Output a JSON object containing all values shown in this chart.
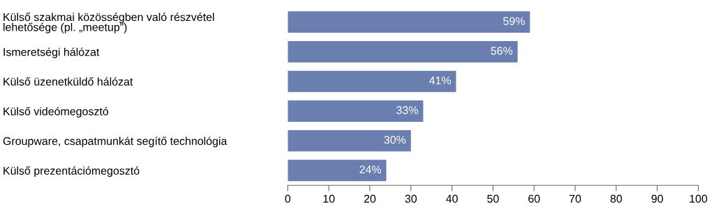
{
  "chart_data": {
    "type": "bar",
    "orientation": "horizontal",
    "categories": [
      "Külső szakmai közösségben való részvétel\nlehetősége (pl. „meetup”)",
      "Ismeretségi hálózat",
      "Külső üzenetküldő hálózat",
      "Külső videómegosztó",
      "Groupware, csapatmunkát segítő technológia",
      "Külső prezentációmegosztó"
    ],
    "values": [
      59,
      56,
      41,
      33,
      30,
      24
    ],
    "value_labels": [
      "59%",
      "56%",
      "41%",
      "33%",
      "30%",
      "24%"
    ],
    "color": "#6a7fb0",
    "xlim": [
      0,
      100
    ],
    "xticks": [
      0,
      10,
      20,
      30,
      40,
      50,
      60,
      70,
      80,
      90,
      100
    ],
    "grid": false
  }
}
